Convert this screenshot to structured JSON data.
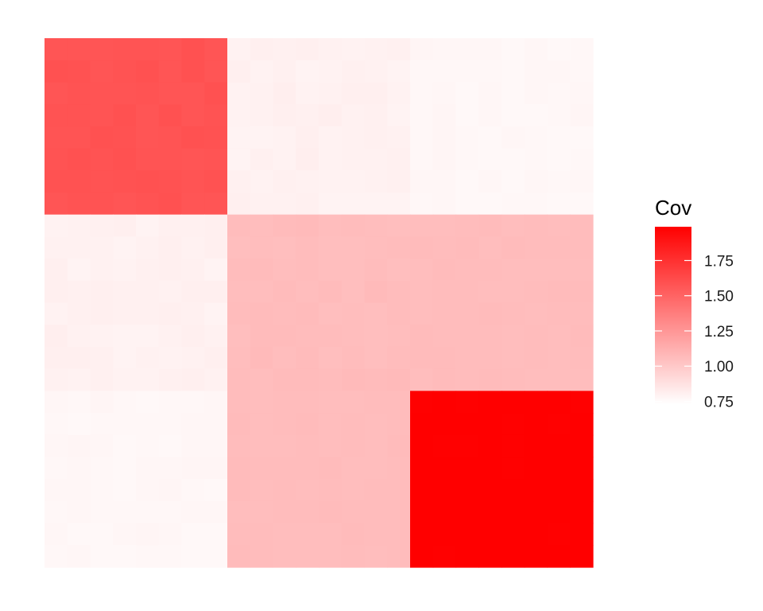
{
  "chart_data": {
    "type": "heatmap",
    "title": "",
    "xlabel": "",
    "ylabel": "",
    "grid": false,
    "fine_cells_per_side": 24,
    "blocks": [
      {
        "name": "block-1-1",
        "row_range": [
          0,
          8
        ],
        "col_range": [
          0,
          8
        ],
        "value": 1.58,
        "jitter": 0.012
      },
      {
        "name": "block-1-2",
        "row_range": [
          0,
          8
        ],
        "col_range": [
          8,
          16
        ],
        "value": 0.8,
        "jitter": 0.012
      },
      {
        "name": "block-1-3",
        "row_range": [
          0,
          8
        ],
        "col_range": [
          16,
          24
        ],
        "value": 0.77,
        "jitter": 0.008
      },
      {
        "name": "block-2-1",
        "row_range": [
          8,
          16
        ],
        "col_range": [
          0,
          8
        ],
        "value": 0.8,
        "jitter": 0.012
      },
      {
        "name": "block-2-2",
        "row_range": [
          8,
          16
        ],
        "col_range": [
          8,
          16
        ],
        "value": 1.06,
        "jitter": 0.01
      },
      {
        "name": "block-2-3",
        "row_range": [
          8,
          16
        ],
        "col_range": [
          16,
          24
        ],
        "value": 1.06,
        "jitter": 0.006
      },
      {
        "name": "block-3-1",
        "row_range": [
          16,
          24
        ],
        "col_range": [
          0,
          8
        ],
        "value": 0.77,
        "jitter": 0.008
      },
      {
        "name": "block-3-2",
        "row_range": [
          16,
          24
        ],
        "col_range": [
          8,
          16
        ],
        "value": 1.06,
        "jitter": 0.006
      },
      {
        "name": "block-3-3",
        "row_range": [
          16,
          24
        ],
        "col_range": [
          16,
          24
        ],
        "value": 1.99,
        "jitter": 0.004
      }
    ],
    "color_scale": {
      "low": "#ffffff",
      "high": "#ff0000",
      "min": 0.73,
      "max": 1.99
    },
    "legend": {
      "title": "Cov",
      "placement": "right",
      "ticks": [
        {
          "value": 1.75,
          "label": "1.75"
        },
        {
          "value": 1.5,
          "label": "1.50"
        },
        {
          "value": 1.25,
          "label": "1.25"
        },
        {
          "value": 1.0,
          "label": "1.00"
        },
        {
          "value": 0.75,
          "label": "0.75"
        }
      ]
    }
  }
}
